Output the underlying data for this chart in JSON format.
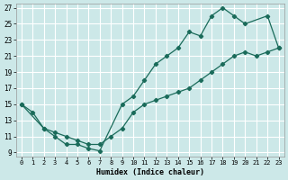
{
  "xlabel": "Humidex (Indice chaleur)",
  "bg_color": "#cce8e8",
  "line_color": "#1a6b5a",
  "grid_color": "#ffffff",
  "xlim": [
    -0.5,
    23.5
  ],
  "ylim": [
    8.5,
    27.5
  ],
  "xticks": [
    0,
    1,
    2,
    3,
    4,
    5,
    6,
    7,
    8,
    9,
    10,
    11,
    12,
    13,
    14,
    15,
    16,
    17,
    18,
    19,
    20,
    21,
    22,
    23
  ],
  "yticks": [
    9,
    11,
    13,
    15,
    17,
    19,
    21,
    23,
    25,
    27
  ],
  "curve_upper": {
    "x": [
      0,
      1,
      2,
      3,
      4,
      5,
      6,
      7,
      9,
      10,
      11,
      12,
      13,
      14,
      15,
      16,
      17,
      18,
      19,
      20,
      22,
      23
    ],
    "y": [
      15,
      14,
      12,
      11,
      10,
      10,
      9.5,
      9.2,
      15,
      16,
      18,
      20,
      21,
      22,
      24,
      23.5,
      26,
      27,
      26,
      25,
      26,
      22
    ]
  },
  "curve_lower": {
    "x": [
      0,
      2,
      3,
      4,
      5,
      6,
      7,
      8,
      9,
      10,
      11,
      12,
      13,
      14,
      15,
      16,
      17,
      18,
      19,
      20,
      21,
      22,
      23
    ],
    "y": [
      15,
      12,
      11.5,
      11,
      10.5,
      10,
      10,
      11,
      12,
      14,
      15,
      15.5,
      16,
      16.5,
      17,
      18,
      19,
      20,
      21,
      21.5,
      21,
      21.5,
      22
    ]
  }
}
